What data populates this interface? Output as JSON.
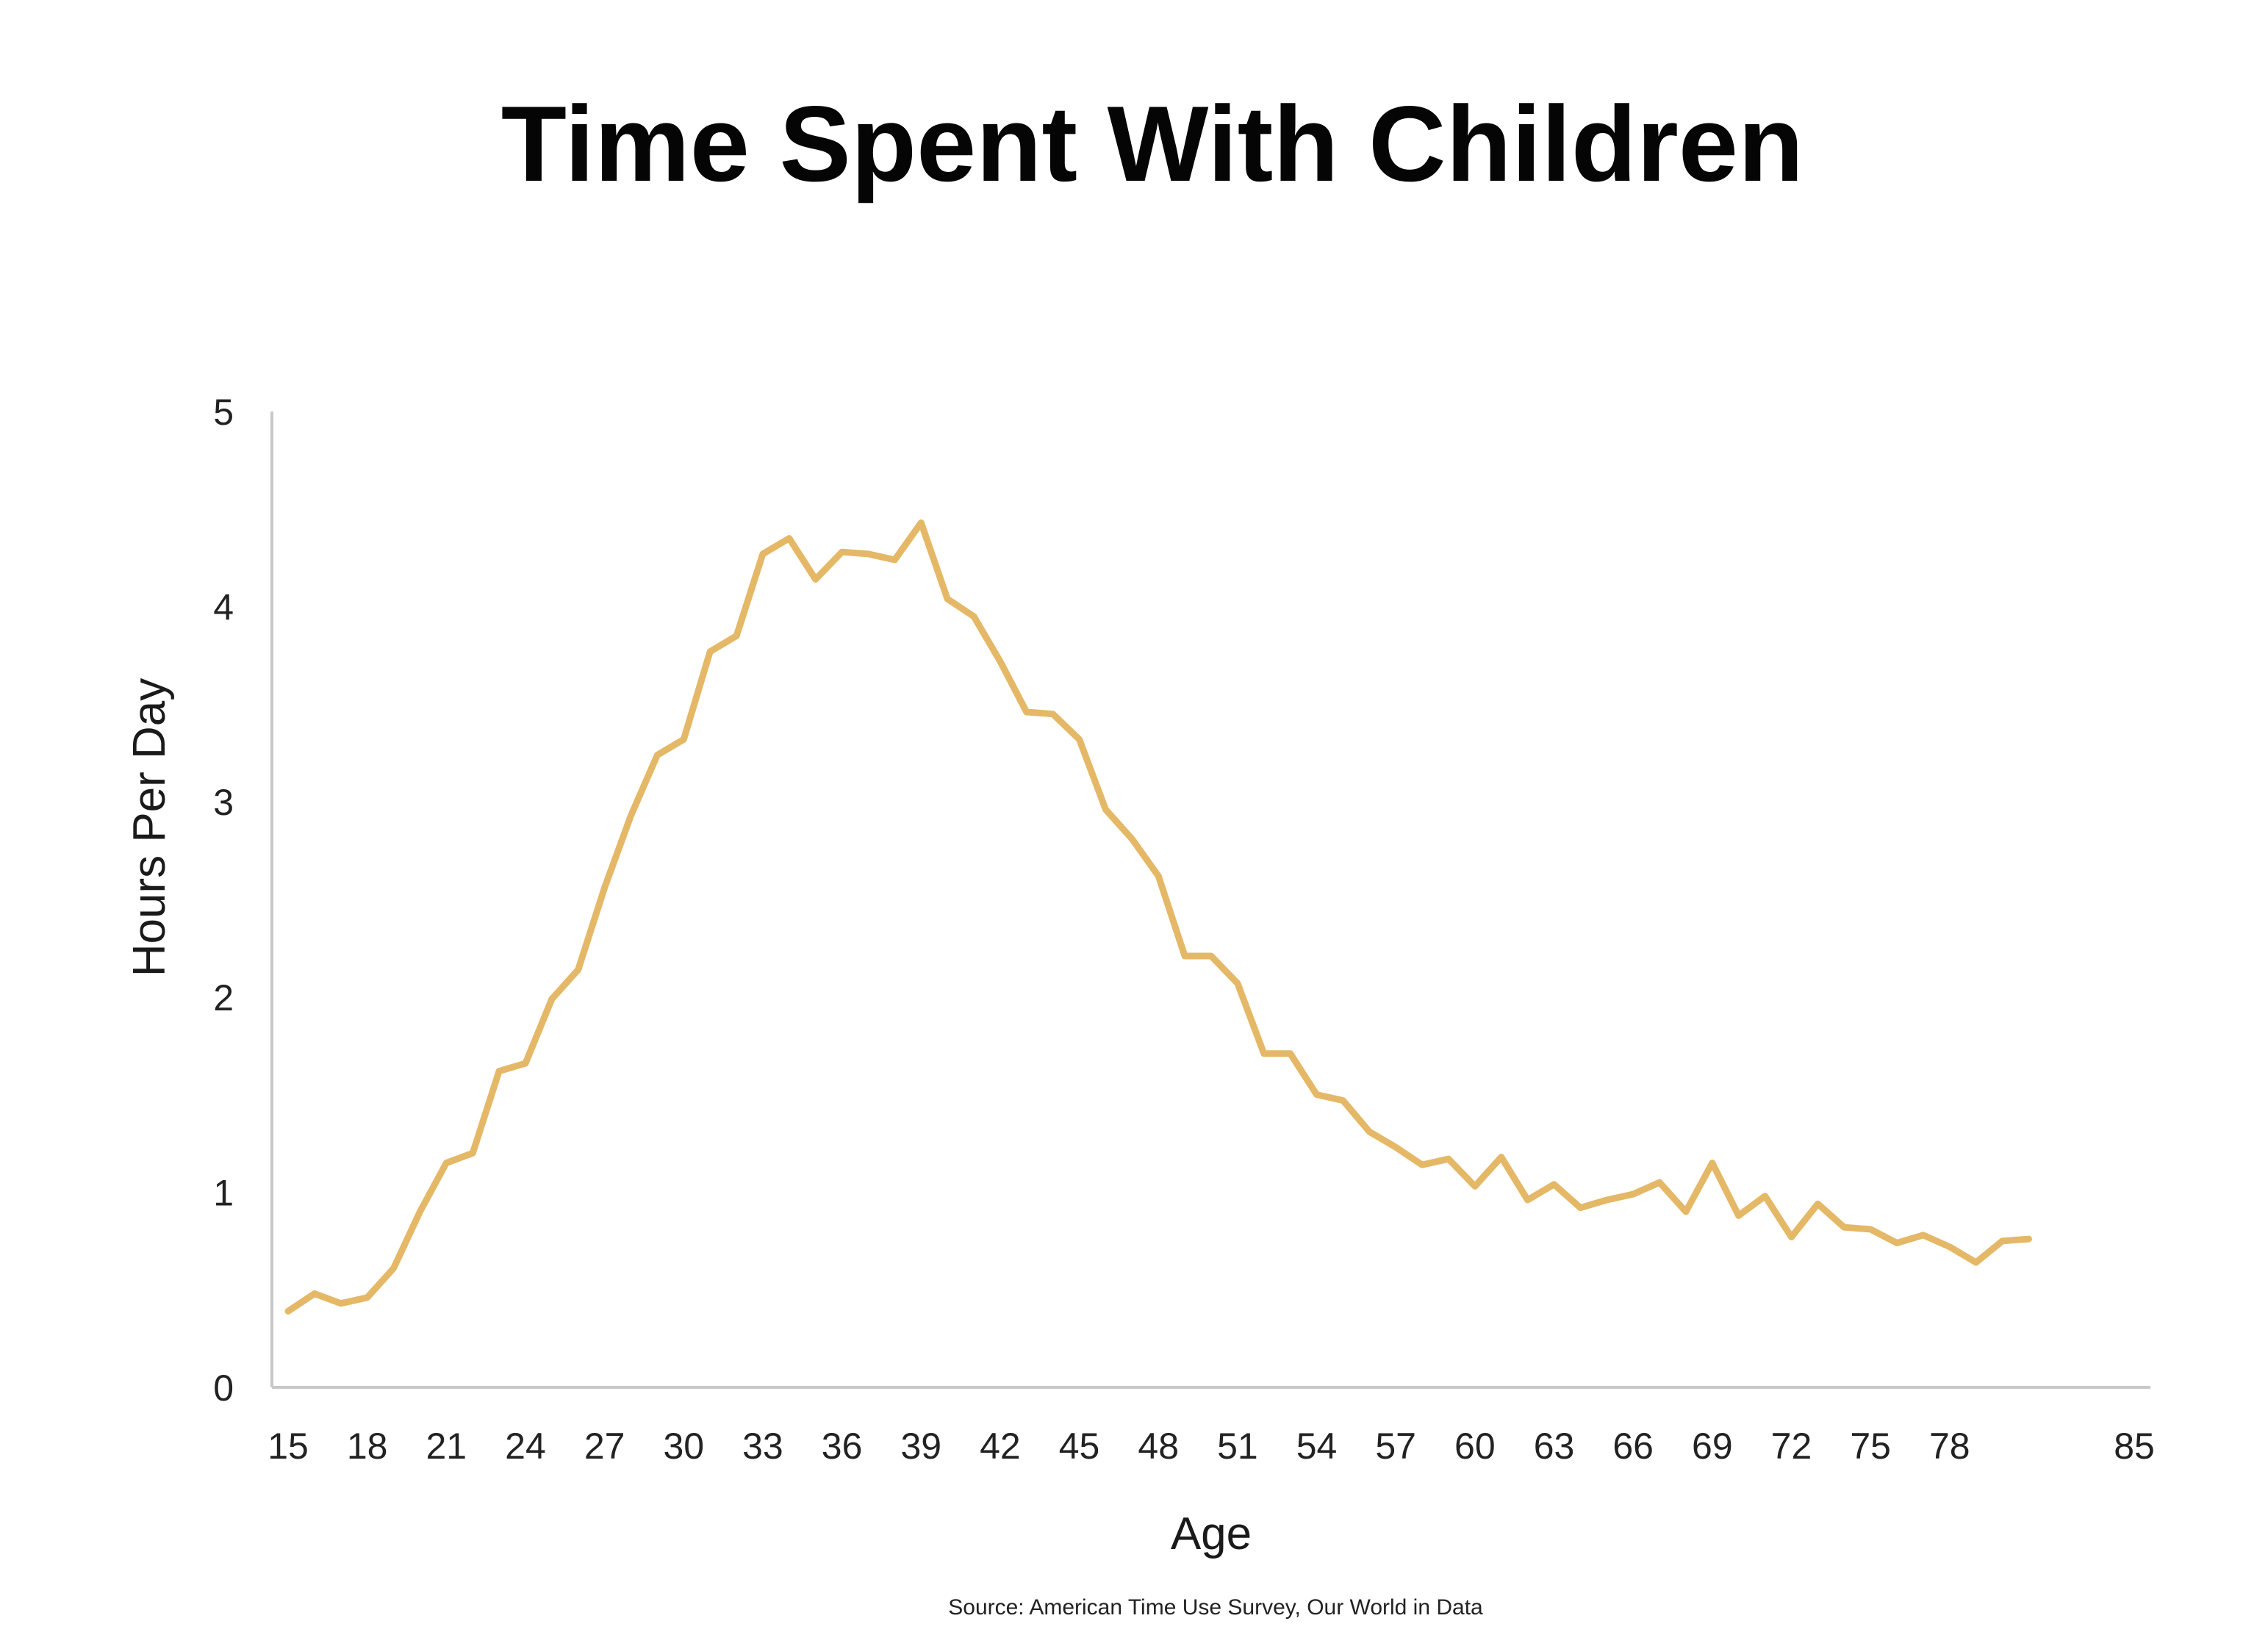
{
  "chart_data": {
    "type": "line",
    "title": "Time Spent With Children",
    "xlabel": "Age",
    "ylabel": "Hours Per Day",
    "source": "Source: American Time Use Survey, Our World in Data",
    "xlim": [
      15,
      85
    ],
    "ylim": [
      0,
      5
    ],
    "xticks": [
      "15",
      "18",
      "21",
      "24",
      "27",
      "30",
      "33",
      "36",
      "39",
      "42",
      "45",
      "48",
      "51",
      "54",
      "57",
      "60",
      "63",
      "66",
      "69",
      "72",
      "75",
      "78",
      "85"
    ],
    "xtick_values": [
      15,
      18,
      21,
      24,
      27,
      30,
      33,
      36,
      39,
      42,
      45,
      48,
      51,
      54,
      57,
      60,
      63,
      66,
      69,
      72,
      75,
      78,
      85
    ],
    "yticks": [
      "0",
      "1",
      "2",
      "3",
      "4",
      "5"
    ],
    "ytick_values": [
      0,
      1,
      2,
      3,
      4,
      5
    ],
    "grid": false,
    "legend": "none",
    "colors": {
      "line": "#E4B866",
      "axis": "#C8C8C8",
      "text": "#111111"
    },
    "series": [
      {
        "x": [
          15,
          16,
          17,
          18,
          19,
          20,
          21,
          22,
          23,
          24,
          25,
          26,
          27,
          28,
          29,
          30,
          31,
          32,
          33,
          34,
          35,
          36,
          37,
          38,
          39,
          40,
          41,
          42,
          43,
          44,
          45,
          46,
          47,
          48,
          49,
          50,
          51,
          52,
          53,
          54,
          55,
          56,
          57,
          58,
          59,
          60,
          61,
          62,
          63,
          64,
          65,
          66,
          67,
          68,
          69,
          70,
          71,
          72,
          73,
          74,
          75,
          76,
          77,
          78,
          79,
          80,
          81
        ],
        "values": [
          0.39,
          0.48,
          0.43,
          0.46,
          0.61,
          0.9,
          1.15,
          1.2,
          1.62,
          1.66,
          1.99,
          2.14,
          2.56,
          2.93,
          3.24,
          3.32,
          3.77,
          3.85,
          4.27,
          4.35,
          4.14,
          4.28,
          4.27,
          4.24,
          4.43,
          4.04,
          3.95,
          3.72,
          3.46,
          3.45,
          3.32,
          2.96,
          2.81,
          2.62,
          2.21,
          2.21,
          2.07,
          1.71,
          1.71,
          1.5,
          1.47,
          1.31,
          1.23,
          1.14,
          1.17,
          1.03,
          1.18,
          0.96,
          1.04,
          0.92,
          0.96,
          0.99,
          1.05,
          0.9,
          1.15,
          0.88,
          0.98,
          0.77,
          0.94,
          0.82,
          0.81,
          0.74,
          0.78,
          0.72,
          0.64,
          0.75,
          0.76
        ]
      }
    ]
  }
}
